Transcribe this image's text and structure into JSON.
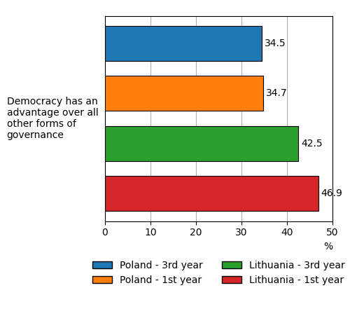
{
  "chart_data": {
    "type": "bar",
    "orientation": "horizontal",
    "categories": [
      "Poland - 3rd year",
      "Poland - 1st year",
      "Lithuania - 3rd year",
      "Lithuania - 1st year"
    ],
    "values": [
      34.5,
      34.7,
      42.5,
      46.9
    ],
    "colors": [
      "#1f77b4",
      "#ff7f0e",
      "#2ca02c",
      "#d62728"
    ],
    "y_label": "Democracy has an\nadvantage over all\nother forms of\ngovernance",
    "xlabel": "%",
    "xlim": [
      0,
      50
    ],
    "xticks": [
      0,
      10,
      20,
      30,
      40,
      50
    ],
    "grid": true,
    "data_labels": true,
    "tick_labels": "x",
    "legend": "upper center"
  }
}
